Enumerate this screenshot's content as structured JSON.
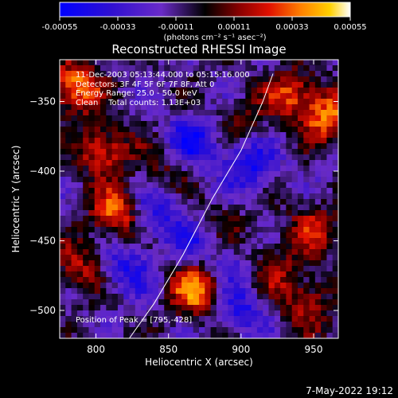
{
  "colorbar": {
    "tick_labels": [
      "-0.00055",
      "-0.00033",
      "-0.00011",
      "0.00011",
      "0.00033",
      "0.00055"
    ],
    "unit_label": "(photons cm⁻² s⁻¹ asec⁻²)",
    "min": -0.00055,
    "max": 0.00055
  },
  "info": {
    "line1": "11-Dec-2003 05:13:44.000 to 05:15:16.000",
    "line2": "Detectors: 3F 4F 5F 6F 7F 8F, Att 0",
    "line3": "Energy Range: 25.0 - 50.0 keV",
    "line4": "Clean    Total counts: 1.13E+03",
    "peak": "Position of Peak = [795,-428]"
  },
  "timestamp": "7-May-2022 19:12",
  "chart_data": {
    "type": "heatmap",
    "title": "Reconstructed RHESSI Image",
    "xlabel": "Heliocentric X (arcsec)",
    "ylabel": "Heliocentric Y (arcsec)",
    "xlim": [
      775,
      967
    ],
    "ylim": [
      -520,
      -320
    ],
    "xticks": [
      800,
      850,
      900,
      950
    ],
    "yticks": [
      -350,
      -400,
      -450,
      -500
    ],
    "xtick_labels": [
      "800",
      "850",
      "900",
      "950"
    ],
    "ytick_labels": [
      "−350",
      "−400",
      "−450",
      "−500"
    ],
    "grid_cols": 48,
    "grid_rows": 50,
    "colormap": [
      "#0000ff",
      "#3010d0",
      "#6a2bc8",
      "#000000",
      "#8b0000",
      "#e01000",
      "#ff8000",
      "#ffd000",
      "#ffffff"
    ],
    "hot_spots": [
      {
        "x": 785,
        "y": -340,
        "value": 0.0005
      },
      {
        "x": 805,
        "y": -385,
        "value": 0.0004
      },
      {
        "x": 815,
        "y": -430,
        "value": 0.00045
      },
      {
        "x": 790,
        "y": -470,
        "value": 0.0003
      },
      {
        "x": 870,
        "y": -485,
        "value": 0.00052
      },
      {
        "x": 850,
        "y": -395,
        "value": 0.00022
      },
      {
        "x": 900,
        "y": -365,
        "value": 0.00018
      },
      {
        "x": 935,
        "y": -345,
        "value": 0.00035
      },
      {
        "x": 960,
        "y": -360,
        "value": 0.00045
      },
      {
        "x": 950,
        "y": -440,
        "value": 0.0003
      },
      {
        "x": 920,
        "y": -470,
        "value": 0.00028
      },
      {
        "x": 945,
        "y": -495,
        "value": 0.00032
      },
      {
        "x": 885,
        "y": -440,
        "value": 0.0002
      }
    ],
    "cold_spots": [
      {
        "x": 865,
        "y": -380,
        "value": -0.0004
      },
      {
        "x": 905,
        "y": -395,
        "value": -0.00035
      },
      {
        "x": 840,
        "y": -430,
        "value": -0.0003
      },
      {
        "x": 820,
        "y": -470,
        "value": -0.0003
      },
      {
        "x": 870,
        "y": -450,
        "value": -0.00025
      },
      {
        "x": 900,
        "y": -500,
        "value": -0.00028
      },
      {
        "x": 895,
        "y": -470,
        "value": -0.00022
      }
    ],
    "limb_arc": {
      "x": [
        823,
        840,
        860,
        880,
        900,
        915,
        922
      ],
      "y": [
        -520,
        -495,
        -460,
        -420,
        -385,
        -350,
        -330
      ]
    },
    "peak": {
      "x": 795,
      "y": -428
    }
  }
}
